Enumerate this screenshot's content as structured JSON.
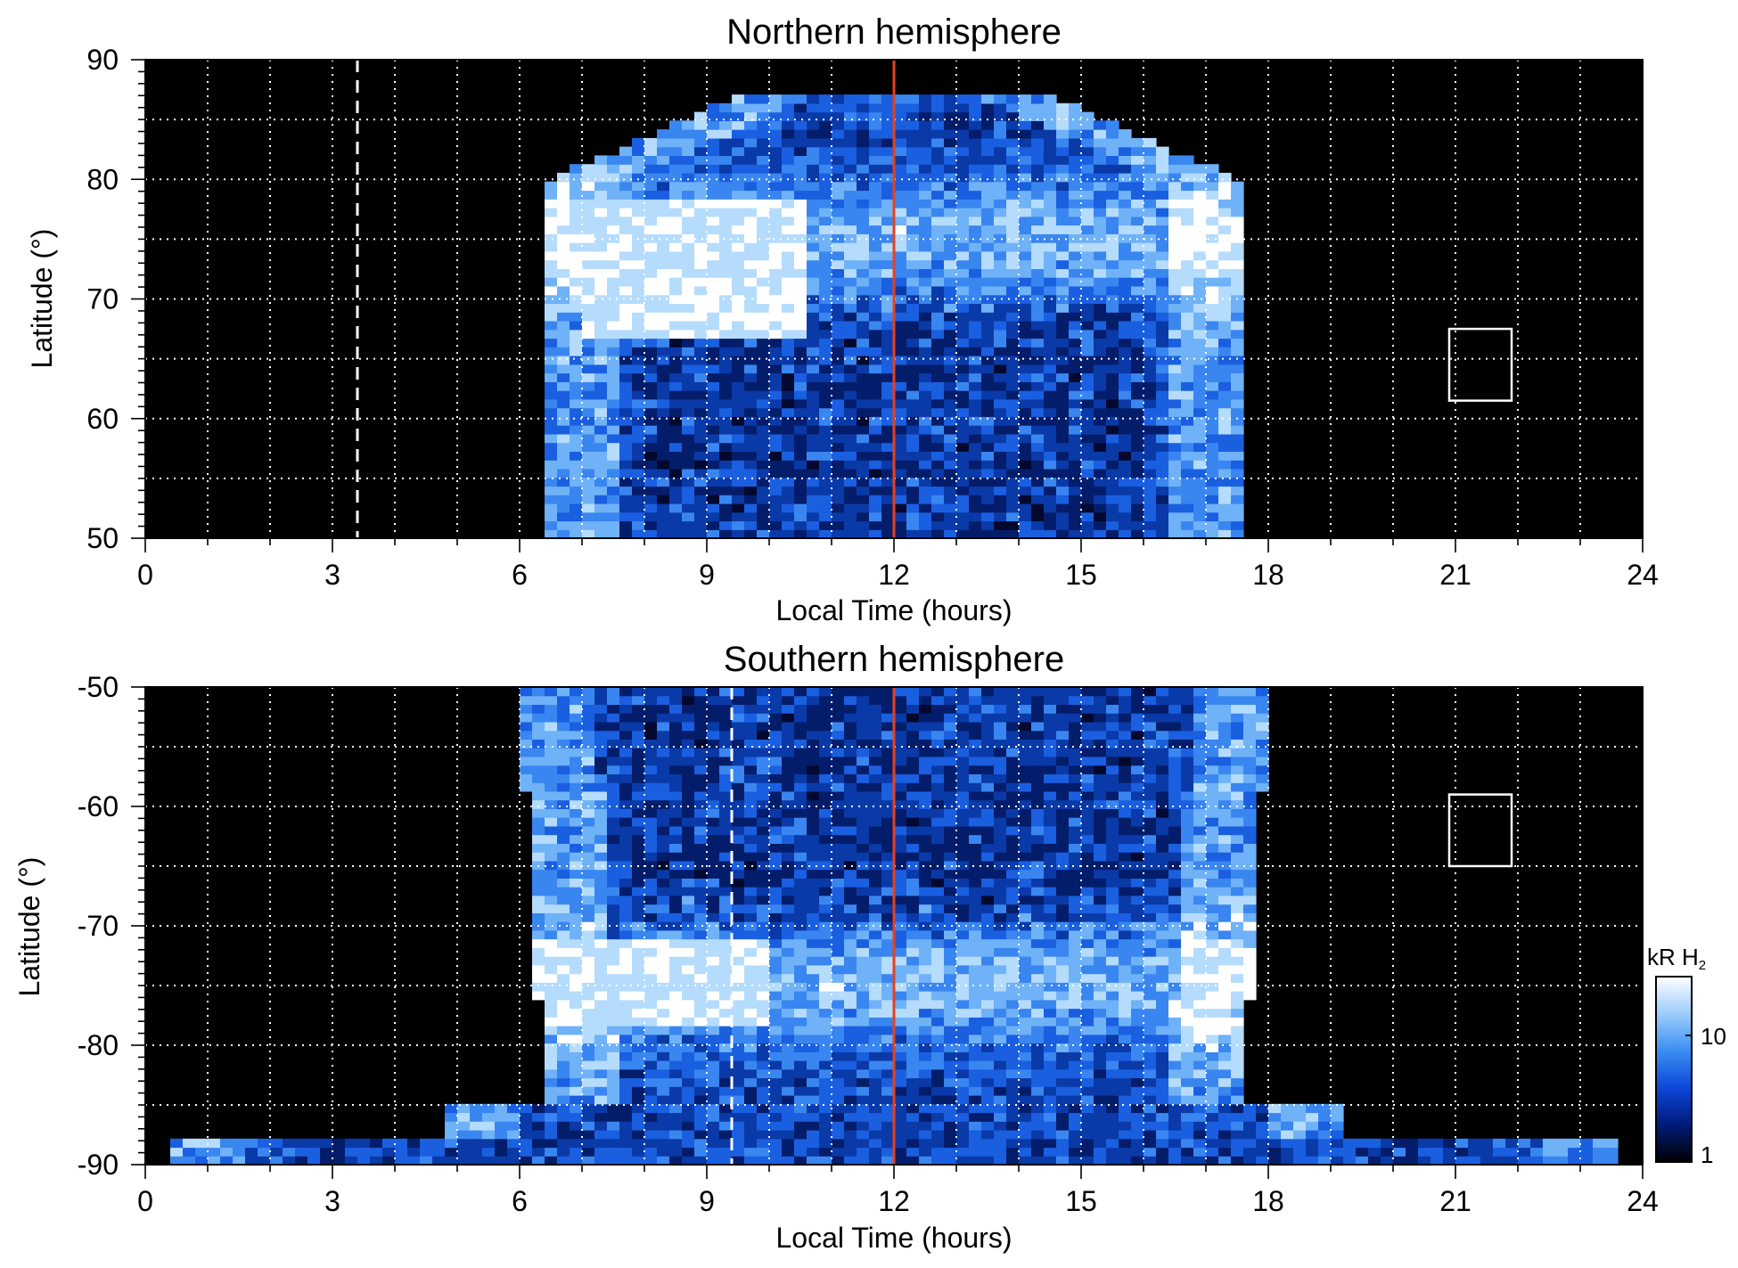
{
  "chart_data": [
    {
      "type": "heatmap",
      "title": "Northern hemisphere",
      "xlabel": "Local Time (hours)",
      "ylabel": "Latitude (°)",
      "xlim": [
        0,
        24
      ],
      "ylim": [
        50,
        90
      ],
      "x_ticks": [
        "0",
        "3",
        "6",
        "9",
        "12",
        "15",
        "18",
        "21",
        "24"
      ],
      "y_ticks": [
        "50",
        "60",
        "70",
        "80",
        "90"
      ],
      "grid": true,
      "background": "#000000",
      "colormap": "blue-white",
      "noon_line_lt": 12,
      "noon_line_color": "#e8401c",
      "dashed_line_lt": 3.4,
      "coverage_lt": [
        6.4,
        17.7
      ],
      "brightest_region": {
        "lt": [
          7,
          10.5
        ],
        "lat": [
          67,
          78
        ]
      },
      "box": {
        "lt": [
          20.9,
          21.9
        ],
        "lat": [
          61.5,
          67.5
        ]
      }
    },
    {
      "type": "heatmap",
      "title": "Southern hemisphere",
      "xlabel": "Local Time (hours)",
      "ylabel": "Latitude (°)",
      "xlim": [
        0,
        24
      ],
      "ylim": [
        -90,
        -50
      ],
      "x_ticks": [
        "0",
        "3",
        "6",
        "9",
        "12",
        "15",
        "18",
        "21",
        "24"
      ],
      "y_ticks": [
        "-50",
        "-60",
        "-70",
        "-80",
        "-90"
      ],
      "grid": true,
      "background": "#000000",
      "colormap": "blue-white",
      "noon_line_lt": 12,
      "noon_line_color": "#e8401c",
      "dashed_line_lt": 9.4,
      "coverage_lt": [
        0.4,
        23.6
      ],
      "brightest_region": {
        "lt": [
          6,
          10
        ],
        "lat": [
          -78,
          -71
        ]
      },
      "box": {
        "lt": [
          20.9,
          21.9
        ],
        "lat": [
          -65,
          -59
        ]
      }
    }
  ],
  "colorbar": {
    "label_main": "kR H",
    "label_sub": "2",
    "ticks": [
      "10",
      "1"
    ],
    "colors": [
      "#000000",
      "#001a7a",
      "#0d47d9",
      "#3b8ef2",
      "#9cccfb",
      "#ffffff"
    ]
  }
}
